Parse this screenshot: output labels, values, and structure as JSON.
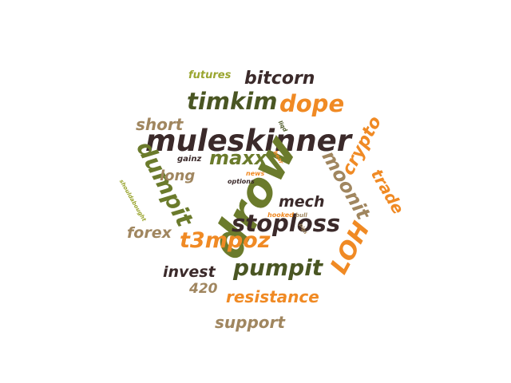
{
  "colors": {
    "orange": "#f08a24",
    "dark_brown": "#3b2a2a",
    "olive": "#6b7b2c",
    "dark_olive": "#4a5623",
    "tan": "#a0865f",
    "yellow_green": "#9aa52f"
  },
  "words": [
    {
      "key": "muleskinner",
      "text": "muleskinner",
      "color": "#3b2a2a"
    },
    {
      "key": "drow",
      "text": "drow",
      "color": "#6b7b2c"
    },
    {
      "key": "stoploss",
      "text": "stoploss",
      "color": "#3b2a2a"
    },
    {
      "key": "pumpit",
      "text": "pumpit",
      "color": "#4a5623"
    },
    {
      "key": "timkim",
      "text": "timkim",
      "color": "#4a5623"
    },
    {
      "key": "dope",
      "text": "dope",
      "color": "#f08a24"
    },
    {
      "key": "dumpit",
      "text": "dumpit",
      "color": "#6b7b2c"
    },
    {
      "key": "maxx",
      "text": "maxx",
      "color": "#6b7b2c"
    },
    {
      "key": "t3mpoz",
      "text": "t3mpoz",
      "color": "#f08a24"
    },
    {
      "key": "moonit",
      "text": "moonit",
      "color": "#a0865f"
    },
    {
      "key": "LOH",
      "text": "LOH",
      "color": "#f08a24"
    },
    {
      "key": "crypto",
      "text": "crypto",
      "color": "#f08a24"
    },
    {
      "key": "trade",
      "text": "trade",
      "color": "#f08a24"
    },
    {
      "key": "bitcorn",
      "text": "bitcorn",
      "color": "#3b2a2a"
    },
    {
      "key": "futures",
      "text": "futures",
      "color": "#9aa52f"
    },
    {
      "key": "short",
      "text": "short",
      "color": "#a0865f"
    },
    {
      "key": "long",
      "text": "long",
      "color": "#a0865f"
    },
    {
      "key": "gainz",
      "text": "gainz",
      "color": "#3b2a2a"
    },
    {
      "key": "forex",
      "text": "forex",
      "color": "#a0865f"
    },
    {
      "key": "mech",
      "text": "mech",
      "color": "#3b2a2a"
    },
    {
      "key": "invest",
      "text": "invest",
      "color": "#3b2a2a"
    },
    {
      "key": "420",
      "text": "420",
      "color": "#a0865f"
    },
    {
      "key": "resistance",
      "text": "resistance",
      "color": "#f08a24"
    },
    {
      "key": "support",
      "text": "support",
      "color": "#a0865f"
    },
    {
      "key": "options",
      "text": "options",
      "color": "#3b2a2a"
    },
    {
      "key": "news",
      "text": "news",
      "color": "#f08a24"
    },
    {
      "key": "bear",
      "text": "bear",
      "color": "#f08a24"
    },
    {
      "key": "liqd",
      "text": "liqd",
      "color": "#4a5623"
    },
    {
      "key": "hooked",
      "text": "hooked",
      "color": "#f08a24"
    },
    {
      "key": "bull",
      "text": "bull",
      "color": "#a0865f"
    },
    {
      "key": "pigs",
      "text": "pigs",
      "color": "#a0865f"
    },
    {
      "key": "shouldabought",
      "text": "shouldabought",
      "color": "#9aa52f"
    }
  ]
}
